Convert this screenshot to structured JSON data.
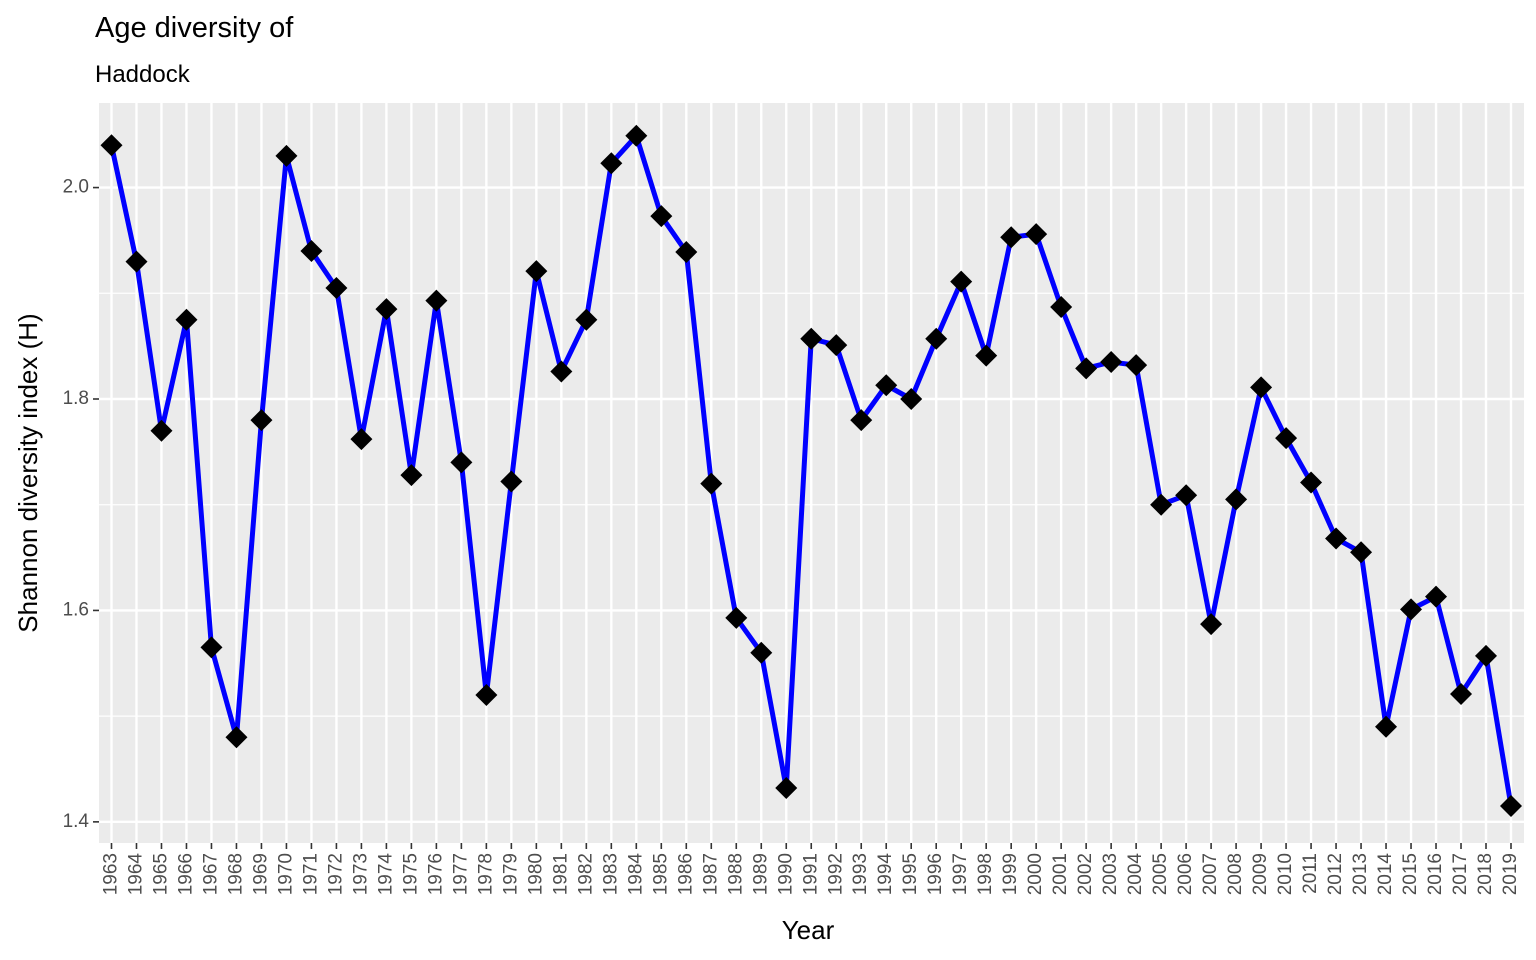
{
  "chart_data": {
    "type": "line",
    "title": "Age diversity of",
    "subtitle": "Haddock",
    "xlabel": "Year",
    "ylabel": "Shannon diversity index (H)",
    "ylim": [
      1.38,
      2.08
    ],
    "yticks": [
      "1.4",
      "1.6",
      "1.8",
      "2.0"
    ],
    "grid": true,
    "colors": {
      "line": "#0000FF",
      "point": "#000000",
      "panel": "#EBEBEB",
      "grid": "#FFFFFF",
      "tick_text": "#4D4D4D"
    },
    "x": [
      1963,
      1964,
      1965,
      1966,
      1967,
      1968,
      1969,
      1970,
      1971,
      1972,
      1973,
      1974,
      1975,
      1976,
      1977,
      1978,
      1979,
      1980,
      1981,
      1982,
      1983,
      1984,
      1985,
      1986,
      1987,
      1988,
      1989,
      1990,
      1991,
      1992,
      1993,
      1994,
      1995,
      1996,
      1997,
      1998,
      1999,
      2000,
      2001,
      2002,
      2003,
      2004,
      2005,
      2006,
      2007,
      2008,
      2009,
      2010,
      2011,
      2012,
      2013,
      2014,
      2015,
      2016,
      2017,
      2018,
      2019
    ],
    "series": [
      {
        "values": [
          2.04,
          1.93,
          1.77,
          1.875,
          1.565,
          1.48,
          1.78,
          2.03,
          1.94,
          1.905,
          1.762,
          1.885,
          1.728,
          1.893,
          1.74,
          1.52,
          1.722,
          1.921,
          1.826,
          1.875,
          2.023,
          2.049,
          1.973,
          1.939,
          1.72,
          1.593,
          1.56,
          1.432,
          1.857,
          1.851,
          1.78,
          1.813,
          1.8,
          1.857,
          1.911,
          1.841,
          1.953,
          1.956,
          1.887,
          1.829,
          1.835,
          1.832,
          1.7,
          1.709,
          1.587,
          1.705,
          1.811,
          1.763,
          1.721,
          1.668,
          1.655,
          1.49,
          1.601,
          1.613,
          1.521,
          1.557,
          1.415
        ]
      }
    ]
  }
}
